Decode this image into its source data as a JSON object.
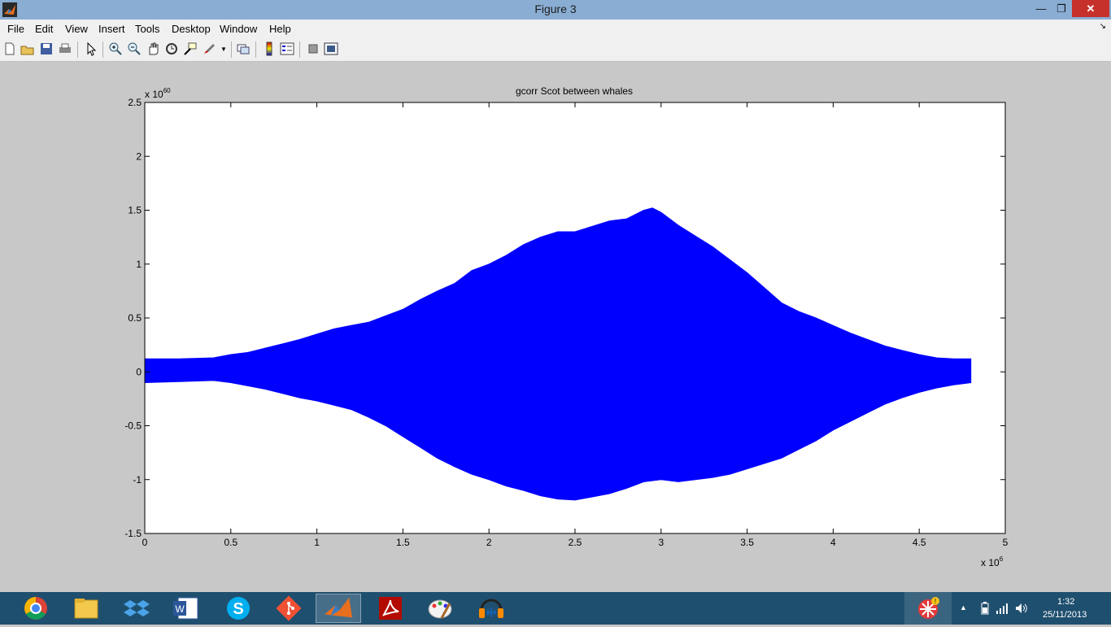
{
  "window": {
    "title": "Figure 3"
  },
  "menu": {
    "items": [
      "File",
      "Edit",
      "View",
      "Insert",
      "Tools",
      "Desktop",
      "Window",
      "Help"
    ]
  },
  "toolbar": {
    "icons": [
      "new-figure-icon",
      "open-file-icon",
      "save-icon",
      "print-icon",
      "edit-plot-arrow-icon",
      "zoom-in-icon",
      "zoom-out-icon",
      "pan-hand-icon",
      "rotate-3d-icon",
      "data-cursor-icon",
      "brush-icon",
      "link-plot-icon",
      "colorbar-icon",
      "legend-icon",
      "hide-plot-tools-icon",
      "show-plot-tools-icon"
    ]
  },
  "chart_data": {
    "type": "area",
    "title": "gcorr Scot between whales",
    "xlabel": "",
    "ylabel": "",
    "x_exponent": "x 10",
    "x_exponent_power": "6",
    "y_exponent": "x 10",
    "y_exponent_power": "60",
    "xlim": [
      0,
      5
    ],
    "ylim": [
      -1.5,
      2.5
    ],
    "xticks": [
      "0",
      "0.5",
      "1",
      "1.5",
      "2",
      "2.5",
      "3",
      "3.5",
      "4",
      "4.5",
      "5"
    ],
    "yticks": [
      "-1.5",
      "-1",
      "-0.5",
      "0",
      "0.5",
      "1",
      "1.5",
      "2",
      "2.5"
    ],
    "color": "#0000ff",
    "grid": false,
    "upper_envelope": {
      "x": [
        0,
        0.2,
        0.4,
        0.5,
        0.6,
        0.7,
        0.8,
        0.9,
        1.0,
        1.1,
        1.2,
        1.3,
        1.4,
        1.5,
        1.6,
        1.7,
        1.8,
        1.9,
        2.0,
        2.1,
        2.2,
        2.3,
        2.4,
        2.5,
        2.6,
        2.7,
        2.8,
        2.9,
        2.95,
        3.0,
        3.1,
        3.2,
        3.3,
        3.4,
        3.5,
        3.6,
        3.7,
        3.8,
        3.9,
        4.0,
        4.1,
        4.2,
        4.3,
        4.4,
        4.5,
        4.6,
        4.7,
        4.8
      ],
      "y": [
        0.12,
        0.12,
        0.13,
        0.16,
        0.18,
        0.22,
        0.26,
        0.3,
        0.35,
        0.4,
        0.43,
        0.46,
        0.52,
        0.58,
        0.67,
        0.75,
        0.82,
        0.94,
        1.0,
        1.08,
        1.18,
        1.25,
        1.3,
        1.3,
        1.35,
        1.4,
        1.42,
        1.5,
        1.52,
        1.48,
        1.36,
        1.26,
        1.16,
        1.04,
        0.92,
        0.78,
        0.64,
        0.56,
        0.5,
        0.43,
        0.36,
        0.3,
        0.24,
        0.2,
        0.16,
        0.13,
        0.12,
        0.12
      ]
    },
    "lower_envelope": {
      "x": [
        0,
        0.2,
        0.4,
        0.5,
        0.6,
        0.7,
        0.8,
        0.9,
        1.0,
        1.1,
        1.2,
        1.3,
        1.4,
        1.5,
        1.6,
        1.7,
        1.8,
        1.9,
        2.0,
        2.1,
        2.2,
        2.3,
        2.4,
        2.5,
        2.6,
        2.7,
        2.8,
        2.9,
        3.0,
        3.1,
        3.2,
        3.3,
        3.4,
        3.5,
        3.6,
        3.7,
        3.8,
        3.9,
        4.0,
        4.1,
        4.2,
        4.3,
        4.4,
        4.5,
        4.6,
        4.7,
        4.8
      ],
      "y": [
        -0.1,
        -0.09,
        -0.08,
        -0.1,
        -0.13,
        -0.16,
        -0.2,
        -0.24,
        -0.27,
        -0.31,
        -0.35,
        -0.42,
        -0.5,
        -0.6,
        -0.7,
        -0.8,
        -0.88,
        -0.95,
        -1.0,
        -1.06,
        -1.1,
        -1.15,
        -1.18,
        -1.19,
        -1.16,
        -1.13,
        -1.08,
        -1.02,
        -1.0,
        -1.02,
        -1.0,
        -0.98,
        -0.95,
        -0.9,
        -0.85,
        -0.8,
        -0.72,
        -0.64,
        -0.54,
        -0.46,
        -0.38,
        -0.3,
        -0.24,
        -0.19,
        -0.15,
        -0.12,
        -0.1
      ]
    }
  },
  "taskbar": {
    "apps": [
      "chrome-icon",
      "file-explorer-icon",
      "dropbox-icon",
      "word-icon",
      "skype-icon",
      "git-icon",
      "matlab-icon",
      "acrobat-icon",
      "paint-icon",
      "audacity-icon"
    ],
    "clock_time": "1:32",
    "clock_date": "25/11/2013"
  }
}
